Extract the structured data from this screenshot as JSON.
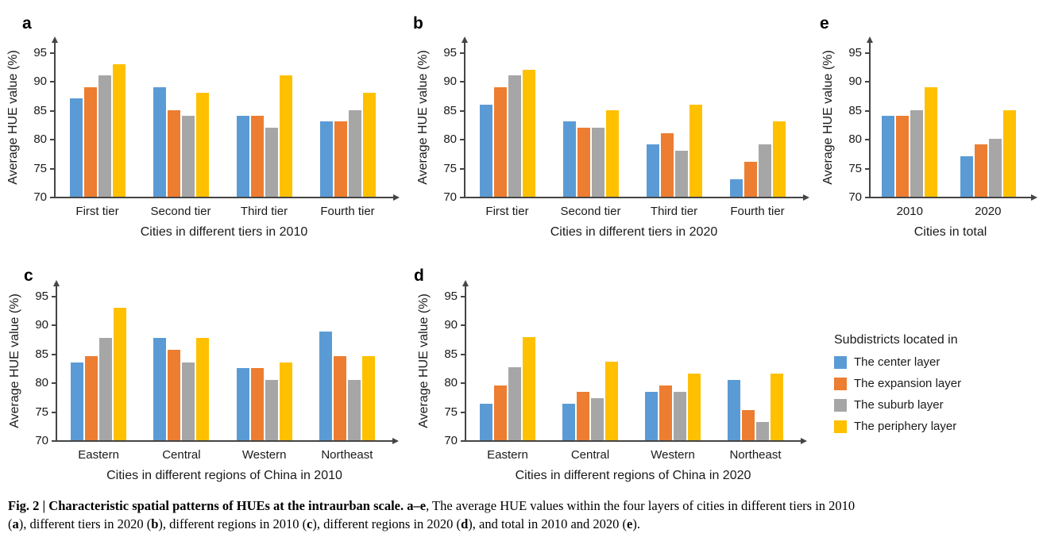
{
  "y_axis": {
    "label": "Average HUE value (%)",
    "min": 70,
    "max": 95,
    "ticks": [
      70,
      75,
      80,
      85,
      90,
      95
    ]
  },
  "legend": {
    "title": "Subdistricts located in",
    "items": [
      {
        "label": "The center layer",
        "color": "#5B9BD5"
      },
      {
        "label": "The expansion layer",
        "color": "#ED7D31"
      },
      {
        "label": "The suburb layer",
        "color": "#A6A6A6"
      },
      {
        "label": "The periphery layer",
        "color": "#FFC000"
      }
    ]
  },
  "chart_data": [
    {
      "id": "a",
      "panel_label": "a",
      "type": "bar",
      "title": "Cities in different tiers in 2010",
      "ylabel": "Average HUE value (%)",
      "ylim": [
        70,
        95
      ],
      "grid": false,
      "categories": [
        "First tier",
        "Second tier",
        "Third tier",
        "Fourth tier"
      ],
      "series": [
        {
          "name": "The center layer",
          "values": [
            87,
            89,
            84,
            83
          ]
        },
        {
          "name": "The expansion layer",
          "values": [
            89,
            85,
            84,
            83
          ]
        },
        {
          "name": "The suburb layer",
          "values": [
            91,
            84,
            82,
            85
          ]
        },
        {
          "name": "The periphery layer",
          "values": [
            93,
            88,
            91,
            88
          ]
        }
      ]
    },
    {
      "id": "b",
      "panel_label": "b",
      "type": "bar",
      "title": "Cities in different tiers in 2020",
      "ylabel": "Average HUE value (%)",
      "ylim": [
        70,
        95
      ],
      "grid": false,
      "categories": [
        "First tier",
        "Second tier",
        "Third tier",
        "Fourth tier"
      ],
      "series": [
        {
          "name": "The center layer",
          "values": [
            86,
            83,
            79,
            73
          ]
        },
        {
          "name": "The expansion layer",
          "values": [
            89,
            82,
            81,
            76
          ]
        },
        {
          "name": "The suburb layer",
          "values": [
            91,
            82,
            78,
            79
          ]
        },
        {
          "name": "The periphery layer",
          "values": [
            92,
            85,
            86,
            83
          ]
        }
      ]
    },
    {
      "id": "c",
      "panel_label": "c",
      "type": "bar",
      "title": "Cities in different regions of China in 2010",
      "ylabel": "Average HUE value (%)",
      "ylim": [
        70,
        95
      ],
      "grid": false,
      "categories": [
        "Eastern",
        "Central",
        "Western",
        "Northeast"
      ],
      "series": [
        {
          "name": "The center layer",
          "values": [
            83.5,
            87.7,
            82.5,
            88.8
          ]
        },
        {
          "name": "The expansion layer",
          "values": [
            84.5,
            85.6,
            82.5,
            84.5
          ]
        },
        {
          "name": "The suburb layer",
          "values": [
            87.7,
            83.5,
            80.4,
            80.4
          ]
        },
        {
          "name": "The periphery layer",
          "values": [
            92.9,
            87.7,
            83.5,
            84.5
          ]
        }
      ]
    },
    {
      "id": "d",
      "panel_label": "d",
      "type": "bar",
      "title": "Cities in different regions of China in 2020",
      "ylabel": "Average HUE value (%)",
      "ylim": [
        70,
        95
      ],
      "grid": false,
      "categories": [
        "Eastern",
        "Central",
        "Western",
        "Northeast"
      ],
      "series": [
        {
          "name": "The center layer",
          "values": [
            76.3,
            76.3,
            78.4,
            80.4
          ]
        },
        {
          "name": "The expansion layer",
          "values": [
            79.5,
            78.4,
            79.5,
            75.2
          ]
        },
        {
          "name": "The suburb layer",
          "values": [
            82.7,
            77.3,
            78.4,
            73.1
          ]
        },
        {
          "name": "The periphery layer",
          "values": [
            87.9,
            83.6,
            81.5,
            81.5
          ]
        }
      ]
    },
    {
      "id": "e",
      "panel_label": "e",
      "type": "bar",
      "title": "Cities in total",
      "ylabel": "Average HUE value (%)",
      "ylim": [
        70,
        95
      ],
      "grid": false,
      "categories": [
        "2010",
        "2020"
      ],
      "series": [
        {
          "name": "The center layer",
          "values": [
            84,
            77
          ]
        },
        {
          "name": "The expansion layer",
          "values": [
            84,
            79
          ]
        },
        {
          "name": "The suburb layer",
          "values": [
            85,
            80
          ]
        },
        {
          "name": "The periphery layer",
          "values": [
            89,
            85
          ]
        }
      ]
    }
  ],
  "caption": {
    "lines": [
      [
        {
          "text": "Fig. 2 | Characteristic spatial patterns of HUEs at the intraurban scale. ",
          "bold": true
        },
        {
          "text": "a–e",
          "bold": true
        },
        {
          "text": ", The average HUE values within the four layers of cities in different tiers in 2010",
          "bold": false
        }
      ],
      [
        {
          "text": "(",
          "bold": false
        },
        {
          "text": "a",
          "bold": true
        },
        {
          "text": "), different tiers in 2020 (",
          "bold": false
        },
        {
          "text": "b",
          "bold": true
        },
        {
          "text": "), different regions in 2010 (",
          "bold": false
        },
        {
          "text": "c",
          "bold": true
        },
        {
          "text": "), different regions in 2020 (",
          "bold": false
        },
        {
          "text": "d",
          "bold": true
        },
        {
          "text": "), and total in 2010 and 2020 (",
          "bold": false
        },
        {
          "text": "e",
          "bold": true
        },
        {
          "text": ").",
          "bold": false
        }
      ]
    ]
  }
}
